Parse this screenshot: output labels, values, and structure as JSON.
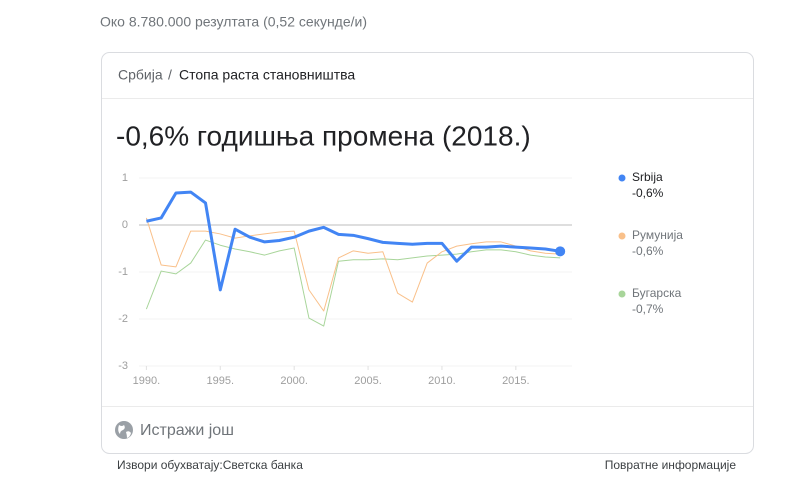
{
  "result_stats": "Око 8.780.000 резултата (0,52 секунде/и)",
  "breadcrumb": [
    "Србија",
    "Стопа раста становништва"
  ],
  "breadcrumb_separator": "/",
  "chart_data": {
    "type": "line",
    "title": "-0,6% годишња промена (2018.)",
    "x": [
      1990,
      1991,
      1992,
      1993,
      1994,
      1995,
      1996,
      1997,
      1998,
      1999,
      2000,
      2001,
      2002,
      2003,
      2004,
      2005,
      2006,
      2007,
      2008,
      2009,
      2010,
      2011,
      2012,
      2013,
      2014,
      2015,
      2016,
      2017,
      2018
    ],
    "series": [
      {
        "name": "Srbija",
        "color": "#4285f4",
        "latest": "-0,6%",
        "values": [
          0.08,
          0.15,
          0.68,
          0.7,
          0.47,
          -1.38,
          -0.09,
          -0.26,
          -0.36,
          -0.33,
          -0.26,
          -0.13,
          -0.05,
          -0.2,
          -0.22,
          -0.29,
          -0.37,
          -0.39,
          -0.41,
          -0.39,
          -0.39,
          -0.77,
          -0.47,
          -0.47,
          -0.45,
          -0.47,
          -0.49,
          -0.51,
          -0.56
        ]
      },
      {
        "name": "Румунија",
        "color": "#f9c08a",
        "latest": "-0,6%",
        "values": [
          0.15,
          -0.85,
          -0.89,
          -0.13,
          -0.13,
          -0.19,
          -0.28,
          -0.23,
          -0.19,
          -0.15,
          -0.13,
          -1.38,
          -1.83,
          -0.7,
          -0.55,
          -0.6,
          -0.57,
          -1.45,
          -1.64,
          -0.81,
          -0.57,
          -0.45,
          -0.4,
          -0.36,
          -0.36,
          -0.45,
          -0.55,
          -0.6,
          -0.62
        ]
      },
      {
        "name": "Бугарска",
        "color": "#a8d59a",
        "latest": "-0,7%",
        "values": [
          -1.79,
          -0.98,
          -1.04,
          -0.81,
          -0.32,
          -0.43,
          -0.51,
          -0.57,
          -0.64,
          -0.55,
          -0.49,
          -1.98,
          -2.15,
          -0.77,
          -0.74,
          -0.74,
          -0.72,
          -0.74,
          -0.7,
          -0.66,
          -0.64,
          -0.62,
          -0.57,
          -0.53,
          -0.53,
          -0.57,
          -0.64,
          -0.68,
          -0.7
        ]
      }
    ],
    "xlim": [
      1989.5,
      2018.8
    ],
    "ylim": [
      -3,
      1
    ],
    "xticks": [
      {
        "value": 1990,
        "label": "1990."
      },
      {
        "value": 1995,
        "label": "1995."
      },
      {
        "value": 2000,
        "label": "2000."
      },
      {
        "value": 2005,
        "label": "2005."
      },
      {
        "value": 2010,
        "label": "2010."
      },
      {
        "value": 2015,
        "label": "2015."
      }
    ],
    "yticks": [
      -3,
      -2,
      -1,
      0,
      1
    ],
    "grid": true
  },
  "explore": "Истражи још",
  "sources": "Извори обухватају:Светска банка",
  "feedback": "Повратне информације"
}
